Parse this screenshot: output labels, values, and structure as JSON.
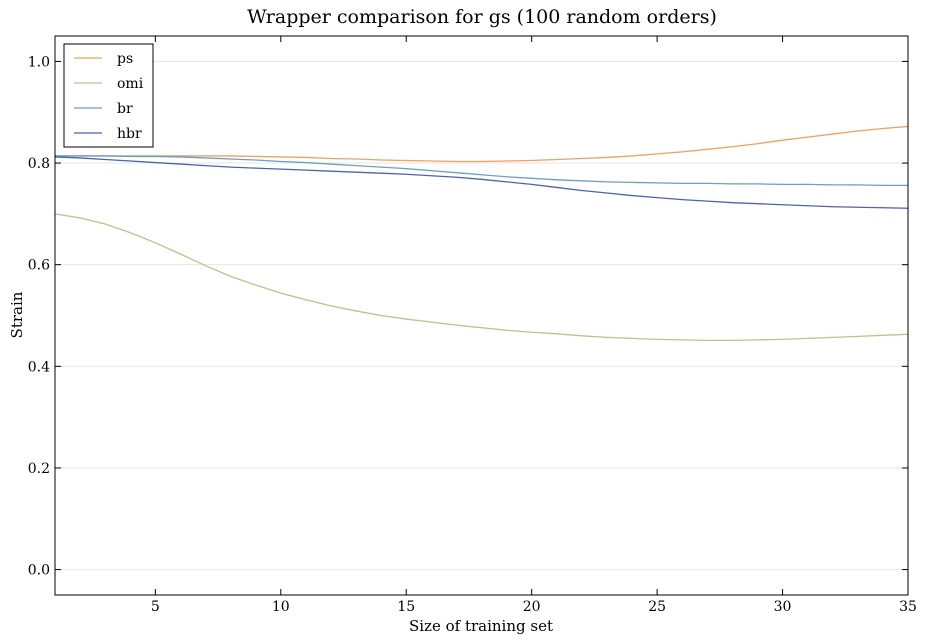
{
  "chart_data": {
    "type": "line",
    "title": "Wrapper comparison for gs (100 random orders)",
    "xlabel": "Size of training set",
    "ylabel": "Strain",
    "xlim": [
      1,
      35
    ],
    "ylim": [
      -0.05,
      1.05
    ],
    "xticks": [
      5,
      10,
      15,
      20,
      25,
      30,
      35
    ],
    "yticks": [
      0.0,
      0.2,
      0.4,
      0.6,
      0.8,
      1.0
    ],
    "xtick_labels": [
      "5",
      "10",
      "15",
      "20",
      "25",
      "30",
      "35"
    ],
    "ytick_labels": [
      "0.0",
      "0.2",
      "0.4",
      "0.6",
      "0.8",
      "1.0"
    ],
    "grid": "horizontal",
    "legend_position": "top-left",
    "x": [
      1,
      2,
      3,
      4,
      5,
      6,
      7,
      8,
      9,
      10,
      11,
      12,
      13,
      14,
      15,
      16,
      17,
      18,
      19,
      20,
      21,
      22,
      23,
      24,
      25,
      26,
      27,
      28,
      29,
      30,
      31,
      32,
      33,
      34,
      35
    ],
    "series": [
      {
        "name": "ps",
        "color": "#f0a060",
        "values": [
          0.814,
          0.814,
          0.814,
          0.814,
          0.814,
          0.814,
          0.814,
          0.814,
          0.813,
          0.812,
          0.811,
          0.809,
          0.808,
          0.806,
          0.805,
          0.804,
          0.803,
          0.803,
          0.804,
          0.805,
          0.807,
          0.809,
          0.811,
          0.814,
          0.818,
          0.822,
          0.827,
          0.832,
          0.838,
          0.845,
          0.851,
          0.857,
          0.863,
          0.868,
          0.872
        ]
      },
      {
        "name": "omi",
        "color": "#b8c48c",
        "values": [
          0.7,
          0.692,
          0.68,
          0.663,
          0.643,
          0.621,
          0.598,
          0.577,
          0.56,
          0.544,
          0.531,
          0.519,
          0.509,
          0.5,
          0.493,
          0.487,
          0.481,
          0.476,
          0.471,
          0.467,
          0.464,
          0.46,
          0.457,
          0.455,
          0.453,
          0.452,
          0.451,
          0.451,
          0.452,
          0.453,
          0.455,
          0.457,
          0.459,
          0.461,
          0.463
        ]
      },
      {
        "name": "br",
        "color": "#6c9ec8",
        "values": [
          0.814,
          0.814,
          0.814,
          0.813,
          0.813,
          0.812,
          0.81,
          0.808,
          0.806,
          0.803,
          0.801,
          0.798,
          0.795,
          0.792,
          0.789,
          0.785,
          0.781,
          0.777,
          0.773,
          0.77,
          0.767,
          0.765,
          0.763,
          0.762,
          0.761,
          0.76,
          0.76,
          0.759,
          0.759,
          0.758,
          0.758,
          0.757,
          0.757,
          0.756,
          0.756
        ]
      },
      {
        "name": "hbr",
        "color": "#4c62b0",
        "values": [
          0.812,
          0.81,
          0.807,
          0.804,
          0.801,
          0.798,
          0.795,
          0.792,
          0.79,
          0.788,
          0.786,
          0.784,
          0.782,
          0.78,
          0.778,
          0.775,
          0.772,
          0.768,
          0.763,
          0.758,
          0.752,
          0.746,
          0.741,
          0.736,
          0.732,
          0.728,
          0.725,
          0.722,
          0.72,
          0.718,
          0.716,
          0.714,
          0.713,
          0.712,
          0.711
        ]
      }
    ]
  }
}
